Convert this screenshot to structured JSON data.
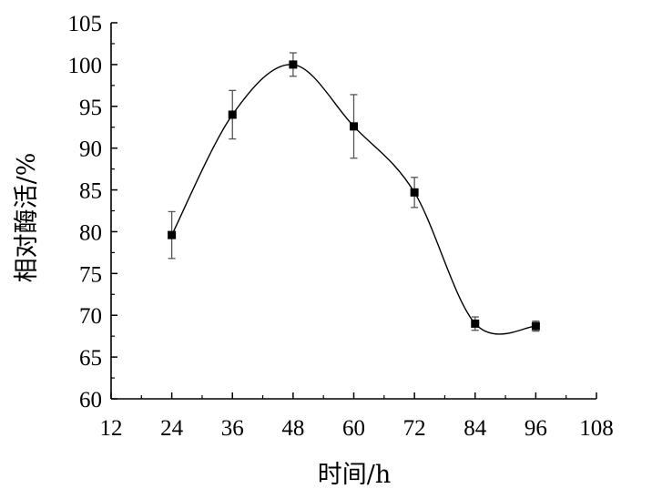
{
  "chart_data": {
    "type": "line",
    "title": "",
    "xlabel": "时间/h",
    "ylabel": "相对酶活/%",
    "xlim": [
      12,
      108
    ],
    "ylim": [
      60,
      105
    ],
    "x_ticks": [
      12,
      24,
      36,
      48,
      60,
      72,
      84,
      96,
      108
    ],
    "y_ticks": [
      60,
      65,
      70,
      75,
      80,
      85,
      90,
      95,
      100,
      105
    ],
    "grid": false,
    "legend": "none",
    "series": [
      {
        "marker": "square",
        "line": "smooth",
        "color": "#000000",
        "x": [
          24,
          36,
          48,
          60,
          72,
          84,
          96
        ],
        "y": [
          79.6,
          94.0,
          100.0,
          92.6,
          84.7,
          69.0,
          68.7
        ],
        "error": [
          2.8,
          2.9,
          1.4,
          3.8,
          1.8,
          0.8,
          0.6
        ]
      }
    ]
  }
}
